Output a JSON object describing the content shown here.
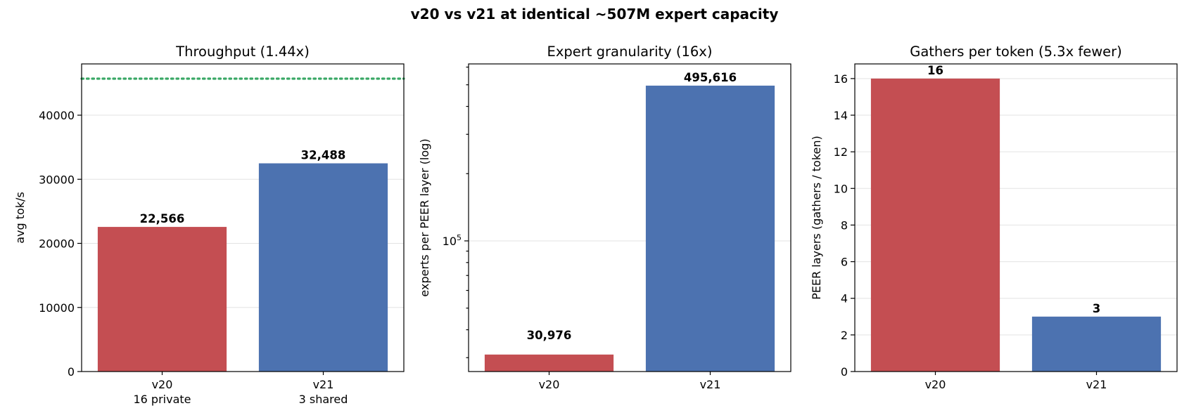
{
  "title": "v20 vs v21 at identical ~507M expert capacity",
  "colors": {
    "v20": "#c44e52",
    "v21": "#4c72b0",
    "reference_line": "#3aa866"
  },
  "chart_data": [
    {
      "type": "bar",
      "title": "Throughput  (1.44x)",
      "xlabel": "",
      "ylabel": "avg tok/s",
      "categories": [
        "v20",
        "v21"
      ],
      "category_sublabels": [
        "16 private",
        "3 shared"
      ],
      "values": [
        22566,
        32488
      ],
      "value_labels": [
        "22,566",
        "32,488"
      ],
      "ylim": [
        0,
        48000
      ],
      "yticks": [
        0,
        10000,
        20000,
        30000,
        40000
      ],
      "ytick_labels": [
        "0",
        "10000",
        "20000",
        "30000",
        "40000"
      ],
      "reference_line": {
        "y": 45700,
        "style": "dotted"
      },
      "grid": true
    },
    {
      "type": "bar",
      "title": "Expert granularity  (16x)",
      "xlabel": "",
      "ylabel": "experts per PEER layer (log)",
      "yscale": "log",
      "categories": [
        "v20",
        "v21"
      ],
      "values": [
        30976,
        495616
      ],
      "value_labels": [
        "30,976",
        "495,616"
      ],
      "ylim": [
        26000,
        620000
      ],
      "yticks": [
        100000
      ],
      "ytick_labels": [
        "10⁵"
      ],
      "minor_ticks": [
        30000,
        40000,
        50000,
        60000,
        70000,
        80000,
        90000,
        200000,
        300000,
        400000,
        500000,
        600000
      ],
      "grid": true
    },
    {
      "type": "bar",
      "title": "Gathers per token  (5.3x fewer)",
      "xlabel": "",
      "ylabel": "PEER layers (gathers / token)",
      "categories": [
        "v20",
        "v21"
      ],
      "values": [
        16,
        3
      ],
      "value_labels": [
        "16",
        "3"
      ],
      "ylim": [
        0,
        16.8
      ],
      "yticks": [
        0,
        2,
        4,
        6,
        8,
        10,
        12,
        14,
        16
      ],
      "ytick_labels": [
        "0",
        "2",
        "4",
        "6",
        "8",
        "10",
        "12",
        "14",
        "16"
      ],
      "grid": true
    }
  ]
}
